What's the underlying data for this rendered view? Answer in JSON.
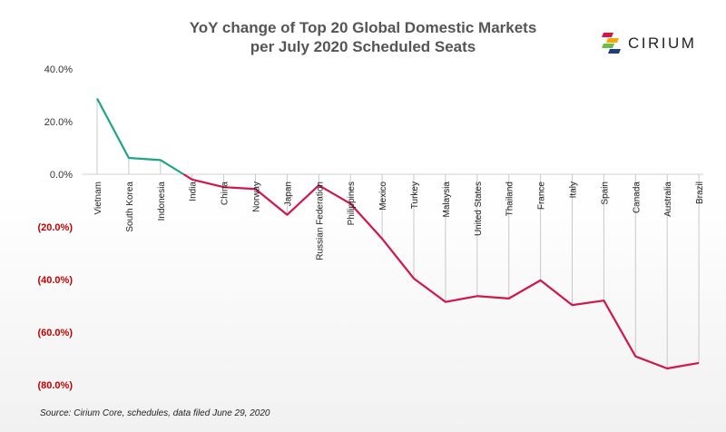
{
  "header": {
    "title_line1": "YoY change of Top 20 Global Domestic Markets",
    "title_line2": "per July 2020 Scheduled Seats"
  },
  "logo": {
    "text": "CIRIUM"
  },
  "footer": {
    "source": "Source: Cirium Core, schedules, data filed June 29, 2020"
  },
  "colors": {
    "positive_line": "#1fa584",
    "negative_line": "#d0164b",
    "negative_label": "#c00000",
    "positive_label": "#333333",
    "drop_line": "#c8c8c8"
  },
  "chart_data": {
    "type": "line",
    "title": "YoY change of Top 20 Global Domestic Markets per July 2020 Scheduled Seats",
    "ylim": [
      -80,
      40
    ],
    "yticks": [
      40,
      20,
      0,
      -20,
      -40,
      -60,
      -80
    ],
    "ytick_labels": [
      "40.0%",
      "20.0%",
      "0.0%",
      "(20.0%)",
      "(40.0%)",
      "(60.0%)",
      "(80.0%)"
    ],
    "categories": [
      "Vietnam",
      "South Korea",
      "Indonesia",
      "India",
      "China",
      "Norway",
      "Japan",
      "Russian Federation",
      "Philippines",
      "Mexico",
      "Turkey",
      "Malaysia",
      "United States",
      "Thailand",
      "France",
      "Italy",
      "Spain",
      "Canada",
      "Australia",
      "Brazil"
    ],
    "values": [
      28.8,
      6.2,
      5.4,
      -2.0,
      -4.9,
      -5.6,
      -15.4,
      -4.2,
      -11.2,
      -24.5,
      -39.6,
      -48.5,
      -46.3,
      -47.2,
      -40.3,
      -49.7,
      -48.0,
      -69.2,
      -73.8,
      -71.7
    ],
    "grid": false,
    "legend": "none"
  }
}
